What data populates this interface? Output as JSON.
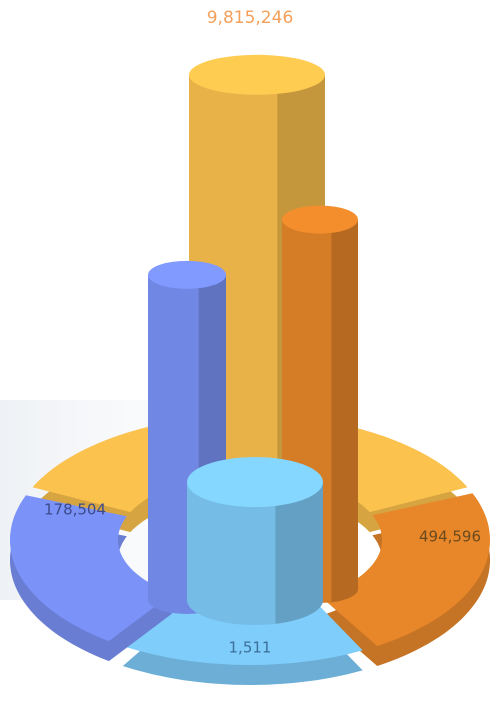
{
  "chart_data": {
    "type": "donut3d",
    "log": true,
    "values": [
      9815246,
      494596,
      1511,
      178504
    ],
    "value_labels": [
      "9,815,246",
      "494,596",
      "1,511",
      "178,504"
    ],
    "colors": [
      "#fcc24e",
      "#e8872a",
      "#7fcdfb",
      "#7b93f8"
    ]
  }
}
